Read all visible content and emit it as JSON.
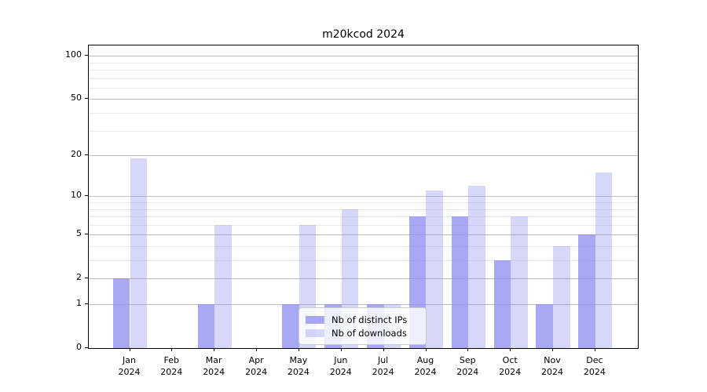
{
  "title": "m20kcod 2024",
  "legend": {
    "position": "lower center",
    "items": [
      {
        "label": "Nb of distinct IPs",
        "color": "rgba(134,134,240,0.72)"
      },
      {
        "label": "Nb of downloads",
        "color": "rgba(134,134,240,0.33)"
      }
    ]
  },
  "chart_data": {
    "type": "bar",
    "title": "m20kcod 2024",
    "scale": "log1p",
    "categories": [
      "Jan",
      "Feb",
      "Mar",
      "Apr",
      "May",
      "Jun",
      "Jul",
      "Aug",
      "Sep",
      "Oct",
      "Nov",
      "Dec"
    ],
    "x_year": "2024",
    "series": [
      {
        "name": "Nb of distinct IPs",
        "color": "rgba(134,134,240,0.72)",
        "values": [
          2,
          0,
          1,
          0,
          1,
          1,
          1,
          7,
          7,
          3,
          1,
          5
        ]
      },
      {
        "name": "Nb of downloads",
        "color": "rgba(134,134,240,0.33)",
        "values": [
          19,
          0,
          6,
          0,
          6,
          8,
          1,
          11,
          12,
          7,
          4,
          15
        ]
      }
    ],
    "xlabel": "",
    "ylabel": "",
    "ylim": [
      0,
      118
    ],
    "y_major_ticks": [
      0,
      1,
      2,
      5,
      10,
      20,
      50,
      100
    ],
    "y_minor_ticks": [
      3,
      4,
      6,
      7,
      8,
      9,
      30,
      40,
      60,
      70,
      80,
      90
    ],
    "grid": true,
    "grid_major_color": "#bdbdbd",
    "grid_minor_color": "#e9e9e9",
    "legend_position": "lower center"
  }
}
